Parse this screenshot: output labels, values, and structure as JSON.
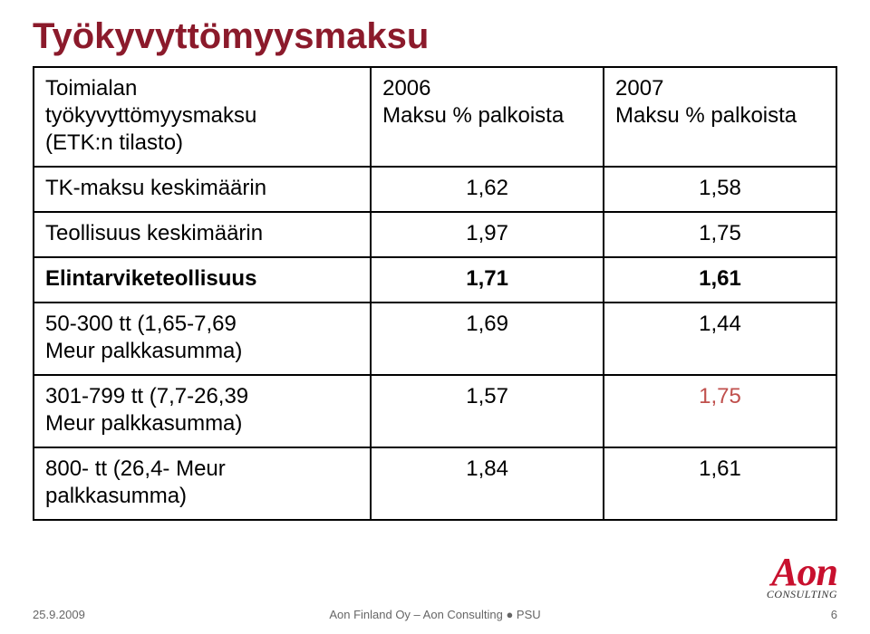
{
  "colors": {
    "title": "#8b1a2b",
    "border": "#000000",
    "highlight": "#c0504d",
    "logo_red": "#c8102e",
    "footer_text": "#666666",
    "background": "#ffffff"
  },
  "typography": {
    "title_fontsize": 40,
    "cell_fontsize": 24,
    "footer_fontsize": 13
  },
  "title": "Työkyvyttömyysmaksu",
  "table": {
    "columns": [
      {
        "line1": "Toimialan",
        "line2": "työkyvyttömyysmaksu",
        "line3": "(ETK:n tilasto)"
      },
      {
        "line1": "2006",
        "line2": "Maksu % palkoista"
      },
      {
        "line1": "2007",
        "line2": "Maksu % palkoista"
      }
    ],
    "rows": [
      {
        "label": "TK-maksu keskimäärin",
        "v1": "1,62",
        "v2": "1,58",
        "bold_label": false
      },
      {
        "label": "Teollisuus keskimäärin",
        "v1": "1,97",
        "v2": "1,75",
        "bold_label": false
      },
      {
        "label": "Elintarviketeollisuus",
        "v1": "1,71",
        "v2": "1,61",
        "bold_label": true
      },
      {
        "label": "50-300 tt (1,65-7,69\nMeur palkkasumma)",
        "v1": "1,69",
        "v2": "1,44",
        "bold_label": false
      },
      {
        "label": "301-799 tt (7,7-26,39\nMeur palkkasumma)",
        "v1": "1,57",
        "v2": "1,75",
        "bold_label": false,
        "highlight_v2": true
      },
      {
        "label": "800- tt (26,4- Meur\npalkkasumma)",
        "v1": "1,84",
        "v2": "1,61",
        "bold_label": false
      }
    ]
  },
  "footer": {
    "date": "25.9.2009",
    "center": "Aon Finland Oy – Aon Consulting ● PSU",
    "page": "6"
  },
  "logo": {
    "main": "Aon",
    "sub": "CONSULTING"
  }
}
